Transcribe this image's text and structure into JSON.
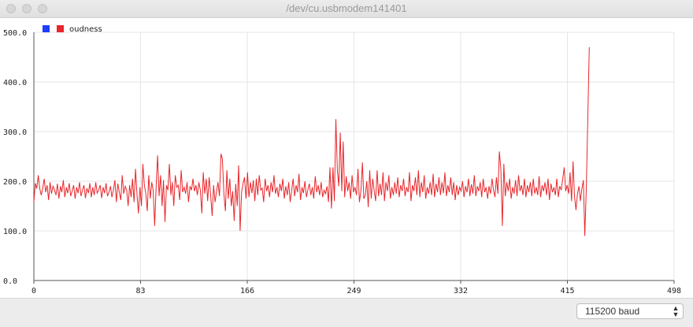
{
  "window": {
    "title": "/dev/cu.usbmodem141401"
  },
  "legend": {
    "items": [
      {
        "label": "",
        "color": "#1f3cff"
      },
      {
        "label": "oudness",
        "color": "#e8262b"
      }
    ]
  },
  "baud": {
    "selected": "115200 baud"
  },
  "icons": {
    "baud_chevrons": "updown-chevron-icon"
  },
  "chart_data": {
    "type": "line",
    "title": "",
    "xlabel": "",
    "ylabel": "",
    "xlim": [
      0,
      498
    ],
    "ylim": [
      0,
      500
    ],
    "x_ticks": [
      "0",
      "83",
      "166",
      "249",
      "332",
      "415",
      "498"
    ],
    "y_ticks": [
      "0.0",
      "100.0",
      "200.0",
      "300.0",
      "400.0",
      "500.0"
    ],
    "grid": true,
    "legend_position": "top-left",
    "series": [
      {
        "name": "oudness",
        "color": "#e8262b",
        "values": [
          158,
          196,
          185,
          212,
          185,
          172,
          185,
          205,
          178,
          192,
          162,
          198,
          175,
          190,
          182,
          172,
          195,
          165,
          190,
          178,
          202,
          168,
          188,
          176,
          196,
          170,
          180,
          192,
          165,
          188,
          176,
          198,
          170,
          182,
          192,
          166,
          186,
          176,
          196,
          168,
          188,
          172,
          198,
          176,
          182,
          192,
          166,
          188,
          176,
          196,
          170,
          178,
          190,
          168,
          182,
          202,
          158,
          195,
          178,
          162,
          212,
          175,
          190,
          182,
          150,
          192,
          168,
          205,
          158,
          225,
          175,
          135,
          188,
          150,
          235,
          192,
          175,
          140,
          212,
          165,
          198,
          182,
          110,
          190,
          252,
          170,
          212,
          150,
          202,
          118,
          192,
          182,
          235,
          172,
          198,
          150,
          212,
          188,
          192,
          162,
          222,
          178,
          188,
          175,
          198,
          158,
          190,
          182,
          205,
          180,
          192,
          172,
          198,
          182,
          135,
          218,
          175,
          205,
          160,
          208,
          172,
          130,
          192,
          158,
          180,
          198,
          170,
          255,
          245,
          175,
          140,
          222,
          165,
          205,
          150,
          180,
          120,
          195,
          150,
          232,
          100,
          178,
          195,
          208,
          165,
          218,
          168,
          198,
          176,
          202,
          160,
          205,
          172,
          212,
          182,
          186,
          158,
          205,
          180,
          192,
          168,
          198,
          178,
          212,
          175,
          188,
          168,
          195,
          180,
          205,
          165,
          190,
          172,
          198,
          158,
          182,
          205,
          170,
          192,
          178,
          215,
          162,
          188,
          176,
          200,
          168,
          182,
          195,
          172,
          188,
          165,
          210,
          178,
          192,
          172,
          198,
          168,
          182,
          175,
          190,
          158,
          228,
          145,
          228,
          160,
          325,
          222,
          190,
          298,
          180,
          280,
          168,
          210,
          180,
          198,
          165,
          212,
          178,
          188,
          172,
          225,
          158,
          180,
          238,
          165,
          172,
          200,
          148,
          222,
          165,
          205,
          182,
          160,
          222,
          170,
          195,
          172,
          218,
          160,
          198,
          180,
          212,
          165,
          188,
          172,
          198,
          175,
          208,
          168,
          192,
          180,
          205,
          170,
          188,
          178,
          218,
          160,
          192,
          180,
          208,
          172,
          222,
          168,
          198,
          178,
          212,
          165,
          188,
          175,
          198,
          172,
          215,
          168,
          195,
          178,
          208,
          172,
          198,
          176,
          218,
          170,
          192,
          178,
          208,
          172,
          198,
          162,
          192,
          172,
          188,
          180,
          200,
          168,
          190,
          178,
          205,
          170,
          194,
          175,
          212,
          170,
          190,
          180,
          198,
          168,
          205,
          178,
          188,
          165,
          190,
          175,
          205,
          182,
          168,
          208,
          175,
          260,
          225,
          110,
          235,
          170,
          198,
          180,
          205,
          165,
          188,
          175,
          202,
          170,
          212,
          180,
          192,
          172,
          205,
          168,
          192,
          178,
          198,
          170,
          205,
          175,
          188,
          172,
          210,
          168,
          192,
          180,
          198,
          172,
          205,
          162,
          195,
          178,
          188,
          172,
          205,
          168,
          190,
          182,
          205,
          228,
          180,
          192,
          175,
          218,
          160,
          240,
          170,
          142,
          175,
          190,
          160,
          185,
          202,
          90,
          185,
          325,
          470
        ]
      }
    ]
  }
}
